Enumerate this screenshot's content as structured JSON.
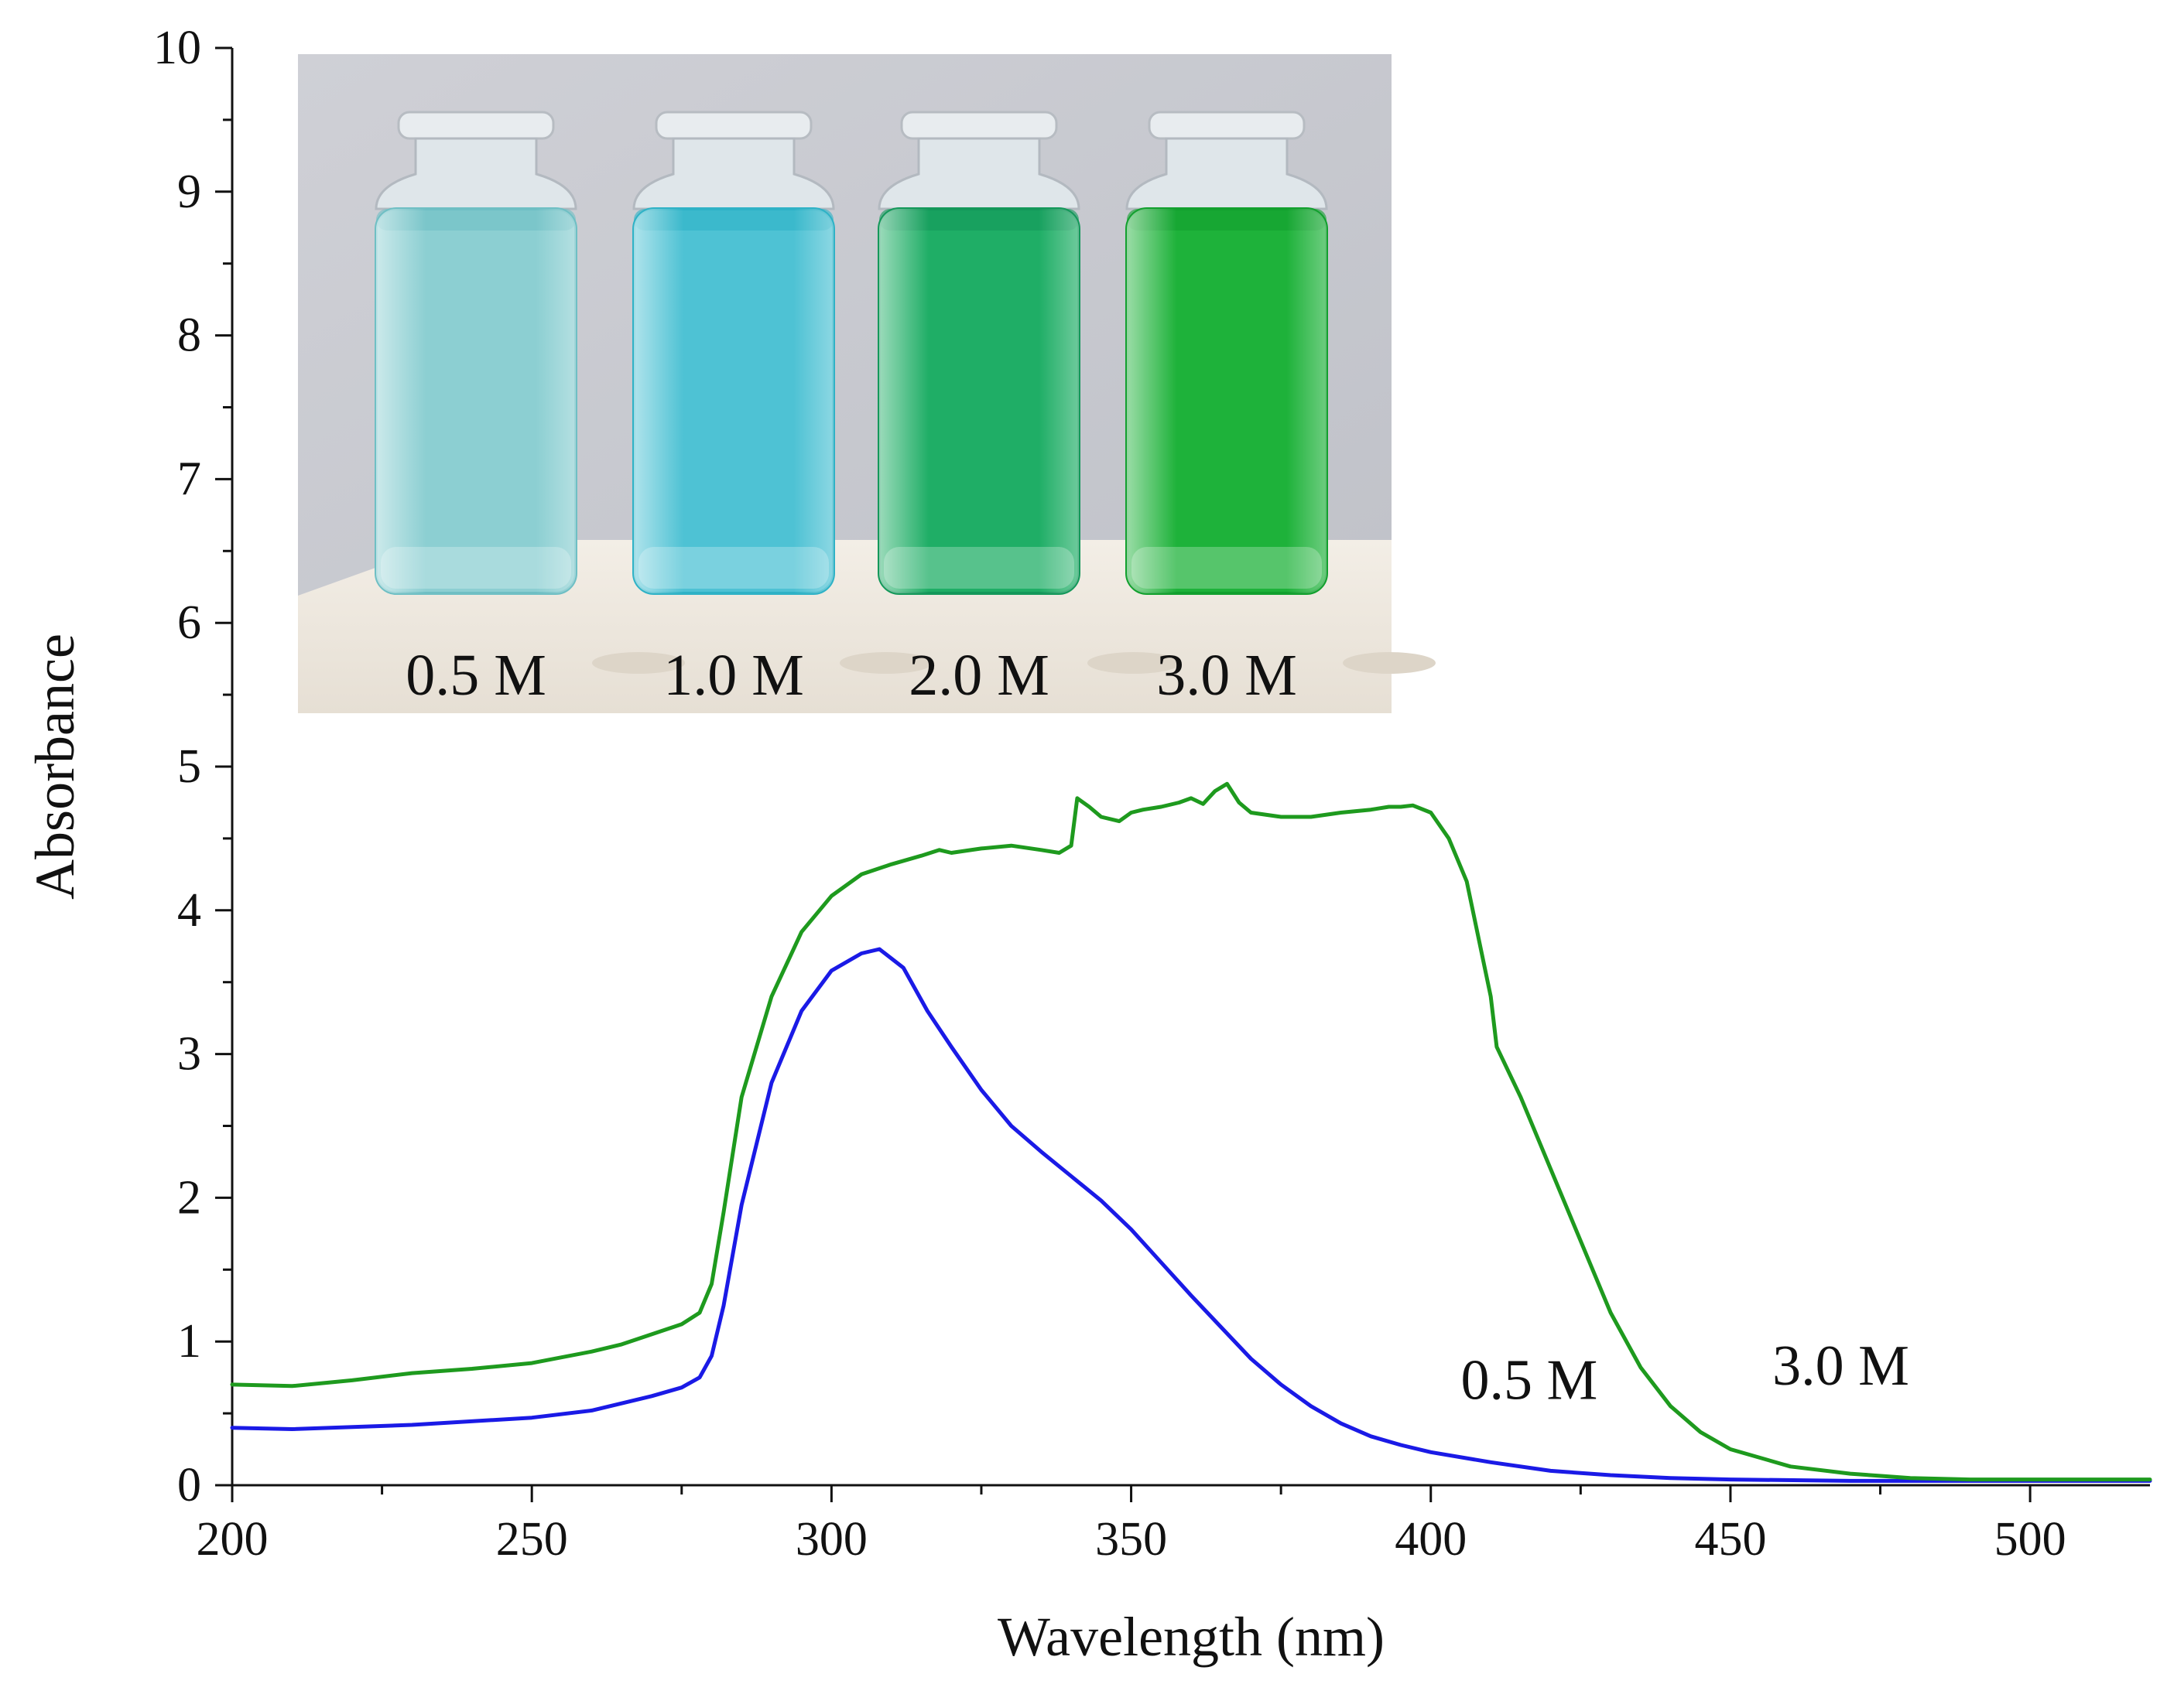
{
  "chart_data": {
    "type": "line",
    "title": "",
    "xlabel": "Wavelength (nm)",
    "ylabel": "Absorbance",
    "xlim": [
      200,
      520
    ],
    "ylim": [
      0,
      10
    ],
    "x_ticks": [
      200,
      250,
      300,
      350,
      400,
      450,
      500
    ],
    "y_ticks": [
      0,
      1,
      2,
      3,
      4,
      5,
      6,
      7,
      8,
      9,
      10
    ],
    "grid": false,
    "series": [
      {
        "name": "0.5 M",
        "color": "#1a1ae6",
        "label": "0.5 M",
        "label_at": [
          405,
          0.6
        ],
        "x": [
          200,
          210,
          230,
          250,
          260,
          270,
          275,
          278,
          280,
          282,
          285,
          290,
          295,
          300,
          305,
          308,
          312,
          316,
          320,
          325,
          330,
          335,
          340,
          345,
          350,
          355,
          360,
          365,
          370,
          375,
          380,
          385,
          390,
          395,
          400,
          410,
          420,
          430,
          440,
          450,
          470,
          500,
          520
        ],
        "y": [
          0.4,
          0.39,
          0.42,
          0.47,
          0.52,
          0.62,
          0.68,
          0.75,
          0.9,
          1.25,
          1.95,
          2.8,
          3.3,
          3.58,
          3.7,
          3.73,
          3.6,
          3.3,
          3.05,
          2.75,
          2.5,
          2.32,
          2.15,
          1.98,
          1.78,
          1.55,
          1.32,
          1.1,
          0.88,
          0.7,
          0.55,
          0.43,
          0.34,
          0.28,
          0.23,
          0.16,
          0.1,
          0.07,
          0.05,
          0.04,
          0.03,
          0.03,
          0.03
        ]
      },
      {
        "name": "3.0 M",
        "color": "#1e9a1e",
        "label": "3.0 M",
        "label_at": [
          457,
          0.7
        ],
        "x": [
          200,
          210,
          220,
          230,
          240,
          250,
          260,
          265,
          270,
          275,
          278,
          280,
          282,
          285,
          290,
          295,
          300,
          305,
          310,
          315,
          318,
          320,
          325,
          330,
          335,
          338,
          340,
          341,
          343,
          345,
          348,
          350,
          352,
          355,
          358,
          360,
          362,
          364,
          366,
          368,
          370,
          375,
          380,
          385,
          390,
          393,
          395,
          397,
          400,
          403,
          406,
          410,
          411,
          415,
          420,
          425,
          430,
          435,
          440,
          445,
          450,
          460,
          470,
          480,
          490,
          500,
          520
        ],
        "y": [
          0.7,
          0.69,
          0.73,
          0.78,
          0.81,
          0.85,
          0.93,
          0.98,
          1.05,
          1.12,
          1.2,
          1.4,
          1.9,
          2.7,
          3.4,
          3.85,
          4.1,
          4.25,
          4.32,
          4.38,
          4.42,
          4.4,
          4.43,
          4.45,
          4.42,
          4.4,
          4.45,
          4.78,
          4.72,
          4.65,
          4.62,
          4.68,
          4.7,
          4.72,
          4.75,
          4.78,
          4.74,
          4.83,
          4.88,
          4.75,
          4.68,
          4.65,
          4.65,
          4.68,
          4.7,
          4.72,
          4.72,
          4.73,
          4.68,
          4.5,
          4.2,
          3.4,
          3.05,
          2.7,
          2.2,
          1.7,
          1.2,
          0.82,
          0.55,
          0.37,
          0.25,
          0.13,
          0.08,
          0.05,
          0.04,
          0.04,
          0.04
        ]
      }
    ],
    "inset": {
      "type": "photo",
      "vials": [
        {
          "label": "0.5 M",
          "liquid": "#8ccfd2",
          "edge": "#6fbfc4"
        },
        {
          "label": "1.0 M",
          "liquid": "#4ec2d4",
          "edge": "#2fb2c6"
        },
        {
          "label": "2.0 M",
          "liquid": "#1fae66",
          "edge": "#14985a"
        },
        {
          "label": "3.0 M",
          "liquid": "#1eb23a",
          "edge": "#12a02e"
        }
      ]
    }
  }
}
